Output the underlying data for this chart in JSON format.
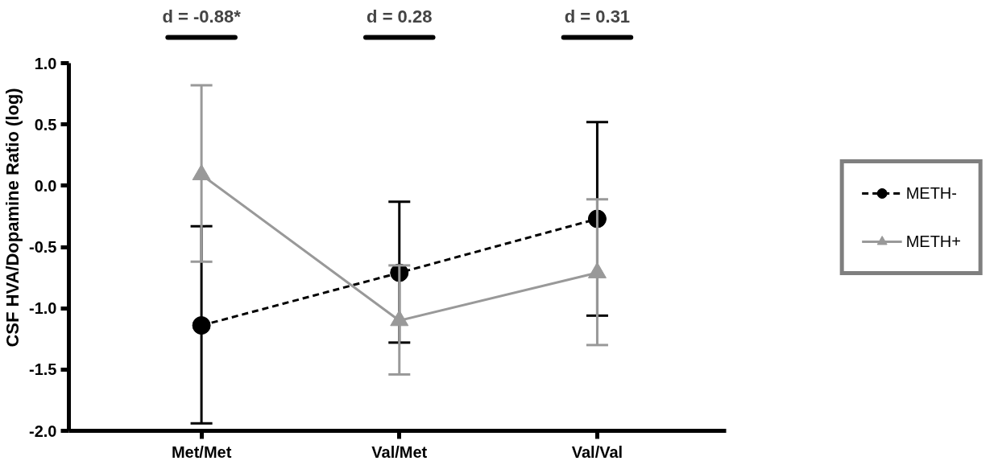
{
  "chart_data": {
    "type": "line",
    "categories": [
      "Met/Met",
      "Val/Met",
      "Val/Val"
    ],
    "ylabel": "CSF HVA/Dopamine Ratio (log)",
    "ylim": [
      -2.0,
      1.0
    ],
    "yticks": [
      {
        "value": -2.0,
        "label": "-2.0"
      },
      {
        "value": -1.5,
        "label": "-1.5"
      },
      {
        "value": -1.0,
        "label": "-1.0"
      },
      {
        "value": -0.5,
        "label": "-0.5"
      },
      {
        "value": 0.0,
        "label": "0.0"
      },
      {
        "value": 0.5,
        "label": "0.5"
      },
      {
        "value": 1.0,
        "label": "1.0"
      }
    ],
    "series": [
      {
        "name": "METH-",
        "color": "#000000",
        "marker": "circle",
        "line_style": "dashed",
        "values": [
          -1.14,
          -0.71,
          -0.27
        ],
        "errors": [
          [
            -1.94,
            -0.33
          ],
          [
            -1.28,
            -0.13
          ],
          [
            -1.06,
            0.52
          ]
        ]
      },
      {
        "name": "METH+",
        "color": "#999999",
        "marker": "triangle",
        "line_style": "solid",
        "values": [
          0.09,
          -1.1,
          -0.71
        ],
        "errors": [
          [
            -0.62,
            0.82
          ],
          [
            -1.54,
            -0.65
          ],
          [
            -1.3,
            -0.11
          ]
        ]
      }
    ],
    "annotations": [
      "d = -0.88*",
      "d = 0.28",
      "d = 0.31"
    ],
    "legend": "right",
    "grid": false
  }
}
